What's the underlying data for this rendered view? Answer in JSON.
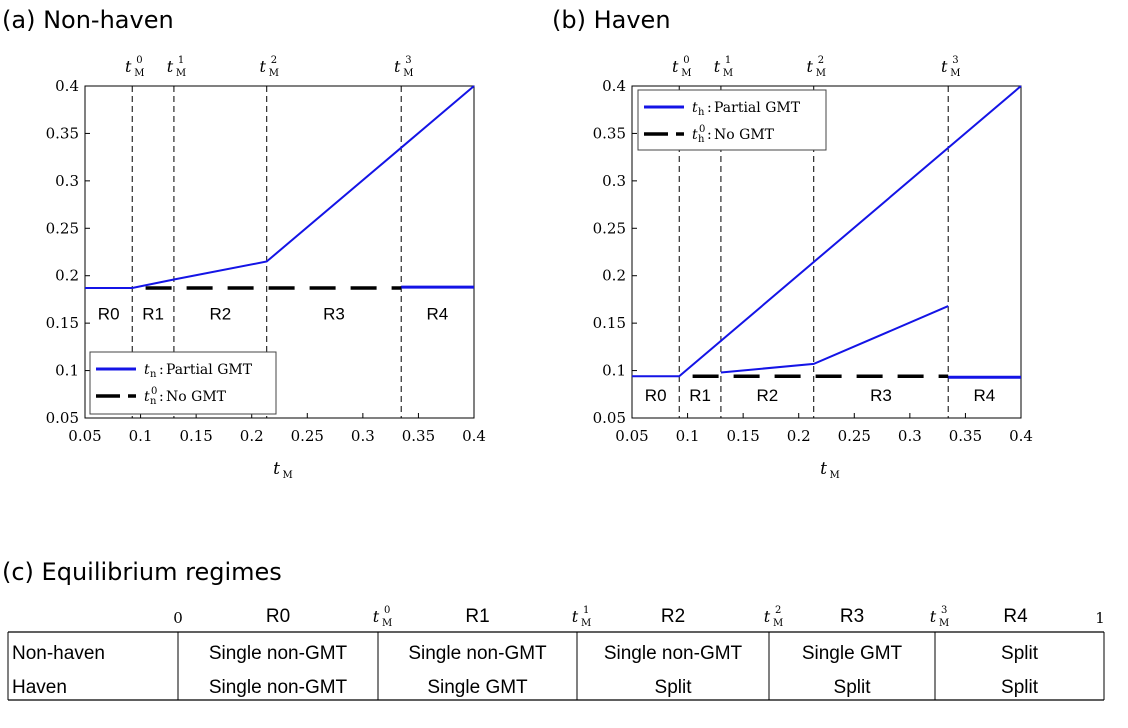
{
  "colors": {
    "partial": "#1414e6",
    "nogmt": "#000000",
    "frame": "#000000",
    "guide": "#000000"
  },
  "chart_data": [
    {
      "type": "line",
      "panel_title": "(a) Non-haven",
      "xlabel": "t",
      "xlabel_sub": "M",
      "xlim": [
        0.05,
        0.4
      ],
      "ylim": [
        0.05,
        0.4
      ],
      "xticks": [
        "0.05",
        "0.1",
        "0.15",
        "0.2",
        "0.25",
        "0.3",
        "0.35",
        "0.4"
      ],
      "yticks": [
        "0.05",
        "0.1",
        "0.15",
        "0.2",
        "0.25",
        "0.3",
        "0.35",
        "0.4"
      ],
      "thresholds": [
        {
          "x": 0.0925,
          "base": "t",
          "sup": "0",
          "sub": "M"
        },
        {
          "x": 0.13,
          "base": "t",
          "sup": "1",
          "sub": "M"
        },
        {
          "x": 0.2135,
          "base": "t",
          "sup": "2",
          "sub": "M"
        },
        {
          "x": 0.3345,
          "base": "t",
          "sup": "3",
          "sub": "M"
        }
      ],
      "regions": [
        {
          "label": "R0",
          "x": 0.0713,
          "y": 0.154
        },
        {
          "label": "R1",
          "x": 0.1113,
          "y": 0.154
        },
        {
          "label": "R2",
          "x": 0.1718,
          "y": 0.154
        },
        {
          "label": "R3",
          "x": 0.274,
          "y": 0.154
        },
        {
          "label": "R4",
          "x": 0.367,
          "y": 0.154
        }
      ],
      "series": [
        {
          "name": "Partial GMT",
          "symbol": "t",
          "symbol_sub": "n",
          "symbol_sup": "",
          "style": "solid",
          "segments": [
            [
              [
                0.05,
                0.187
              ],
              [
                0.0925,
                0.187
              ],
              [
                0.13,
                0.196
              ],
              [
                0.2135,
                0.215
              ],
              [
                0.3345,
                0.335
              ],
              [
                0.4,
                0.4
              ]
            ]
          ]
        },
        {
          "name": "Partial GMT R4",
          "style": "solid-thick",
          "legend": false,
          "segments": [
            [
              [
                0.3345,
                0.188
              ],
              [
                0.4,
                0.188
              ]
            ]
          ]
        },
        {
          "name": "No GMT",
          "symbol": "t",
          "symbol_sub": "n",
          "symbol_sup": "0",
          "style": "dash",
          "segments": [
            [
              [
                0.1045,
                0.187
              ],
              [
                0.3345,
                0.187
              ]
            ]
          ]
        }
      ],
      "legend_location": "lower-left"
    },
    {
      "type": "line",
      "panel_title": "(b) Haven",
      "xlabel": "t",
      "xlabel_sub": "M",
      "xlim": [
        0.05,
        0.4
      ],
      "ylim": [
        0.05,
        0.4
      ],
      "xticks": [
        "0.05",
        "0.1",
        "0.15",
        "0.2",
        "0.25",
        "0.3",
        "0.35",
        "0.4"
      ],
      "yticks": [
        "0.05",
        "0.1",
        "0.15",
        "0.2",
        "0.25",
        "0.3",
        "0.35",
        "0.4"
      ],
      "thresholds": [
        {
          "x": 0.0925,
          "base": "t",
          "sup": "0",
          "sub": "M"
        },
        {
          "x": 0.13,
          "base": "t",
          "sup": "1",
          "sub": "M"
        },
        {
          "x": 0.2135,
          "base": "t",
          "sup": "2",
          "sub": "M"
        },
        {
          "x": 0.3345,
          "base": "t",
          "sup": "3",
          "sub": "M"
        }
      ],
      "regions": [
        {
          "label": "R0",
          "x": 0.0713,
          "y": 0.068
        },
        {
          "label": "R1",
          "x": 0.1113,
          "y": 0.068
        },
        {
          "label": "R2",
          "x": 0.1718,
          "y": 0.068
        },
        {
          "label": "R3",
          "x": 0.274,
          "y": 0.068
        },
        {
          "label": "R4",
          "x": 0.367,
          "y": 0.068
        }
      ],
      "series": [
        {
          "name": "Partial GMT",
          "symbol": "t",
          "symbol_sub": "h",
          "symbol_sup": "",
          "style": "solid",
          "segments": [
            [
              [
                0.05,
                0.094
              ],
              [
                0.0925,
                0.094
              ],
              [
                0.4,
                0.4
              ]
            ],
            [
              [
                0.13,
                0.098
              ],
              [
                0.2135,
                0.107
              ],
              [
                0.3345,
                0.168
              ]
            ]
          ]
        },
        {
          "name": "Partial GMT R4",
          "style": "solid-thick",
          "legend": false,
          "segments": [
            [
              [
                0.3345,
                0.093
              ],
              [
                0.4,
                0.093
              ]
            ]
          ]
        },
        {
          "name": "No GMT",
          "symbol": "t",
          "symbol_sub": "h",
          "symbol_sup": "0",
          "style": "dash",
          "segments": [
            [
              [
                0.1045,
                0.094
              ],
              [
                0.3345,
                0.094
              ]
            ]
          ]
        }
      ],
      "legend_location": "top-left"
    }
  ],
  "table": {
    "title": "(c) Equilibrium regimes",
    "bounds": [
      {
        "base": "0",
        "sup": "",
        "sub": ""
      },
      {
        "base": "t",
        "sup": "0",
        "sub": "M"
      },
      {
        "base": "t",
        "sup": "1",
        "sub": "M"
      },
      {
        "base": "t",
        "sup": "2",
        "sub": "M"
      },
      {
        "base": "t",
        "sup": "3",
        "sub": "M"
      },
      {
        "base": "1",
        "sup": "",
        "sub": ""
      }
    ],
    "columns": [
      "R0",
      "R1",
      "R2",
      "R3",
      "R4"
    ],
    "rows": [
      {
        "label": "Non-haven",
        "cells": [
          "Single non-GMT",
          "Single non-GMT",
          "Single non-GMT",
          "Single GMT",
          "Split"
        ]
      },
      {
        "label": "Haven",
        "cells": [
          "Single non-GMT",
          "Single GMT",
          "Split",
          "Split",
          "Split"
        ]
      }
    ]
  }
}
